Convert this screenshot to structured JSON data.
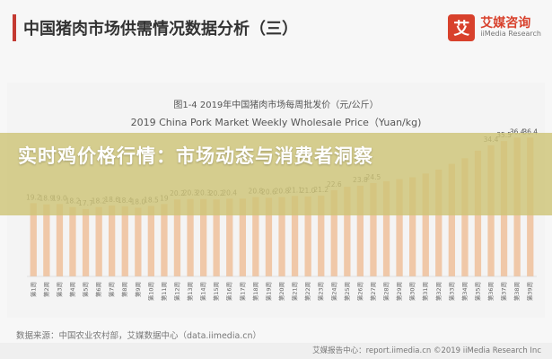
{
  "header": {
    "title": "中国猪肉市场供需情况数据分析（三）"
  },
  "logo": {
    "mark": "艾",
    "name_cn": "艾媒咨询",
    "name_en": "iiMedia Research"
  },
  "chart_data": {
    "type": "bar",
    "figure_label": "图1-4 2019年中国猪肉市场每周批发价（元/公斤）",
    "title": "2019 China Pork Market Weekly Wholesale Price（Yuan/kg)",
    "categories": [
      "第1周",
      "第2周",
      "第3周",
      "第4周",
      "第5周",
      "第6周",
      "第7周",
      "第8周",
      "第9周",
      "第10周",
      "第11周",
      "第12周",
      "第13周",
      "第14周",
      "第15周",
      "第16周",
      "第17周",
      "第18周",
      "第19周",
      "第20周",
      "第21周",
      "第22周",
      "第23周",
      "第24周",
      "第25周",
      "第26周",
      "第27周",
      "第28周",
      "第29周",
      "第30周",
      "第31周",
      "第32周",
      "第33周",
      "第34周",
      "第35周",
      "第36周",
      "第37周",
      "第38周",
      "第39周"
    ],
    "values": [
      19.2,
      18.9,
      19.0,
      18.2,
      17.7,
      18.2,
      18.6,
      18.4,
      18.0,
      18.5,
      19.0,
      20.2,
      20.3,
      20.3,
      20.2,
      20.4,
      20.4,
      20.8,
      20.6,
      20.8,
      21.1,
      21.0,
      21.2,
      22.6,
      23.5,
      23.8,
      24.5,
      25.0,
      25.5,
      26.0,
      27.0,
      28.0,
      29.5,
      31.0,
      33.0,
      34.4,
      35.5,
      36.4,
      36.4
    ],
    "shown_labels": [
      "19.2",
      "18.9",
      "19.0",
      "18.2",
      "17.7",
      "18.2",
      "18.6",
      "18.4",
      "18.0",
      "18.5",
      "19",
      "20.2",
      "20.3",
      "20.3",
      "20.2",
      "20.4",
      "",
      "20.8",
      "20.6",
      "20.8",
      "21.1",
      "21.0",
      "21.2",
      "22.6",
      "",
      "23.8",
      "24.5",
      "",
      "",
      "",
      "",
      "",
      "",
      "",
      "",
      "34.4",
      "35.5",
      "36.4",
      "36.4"
    ],
    "color": "#f0c8a8"
  },
  "headline": "实时鸡价格行情：市场动态与消费者洞察",
  "source": "数据来源：中国农业农村部，艾媒数据中心（data.iimedia.cn）",
  "footer": "艾媒报告中心：report.iimedia.cn  ©2019  iiMedia Research Inc"
}
